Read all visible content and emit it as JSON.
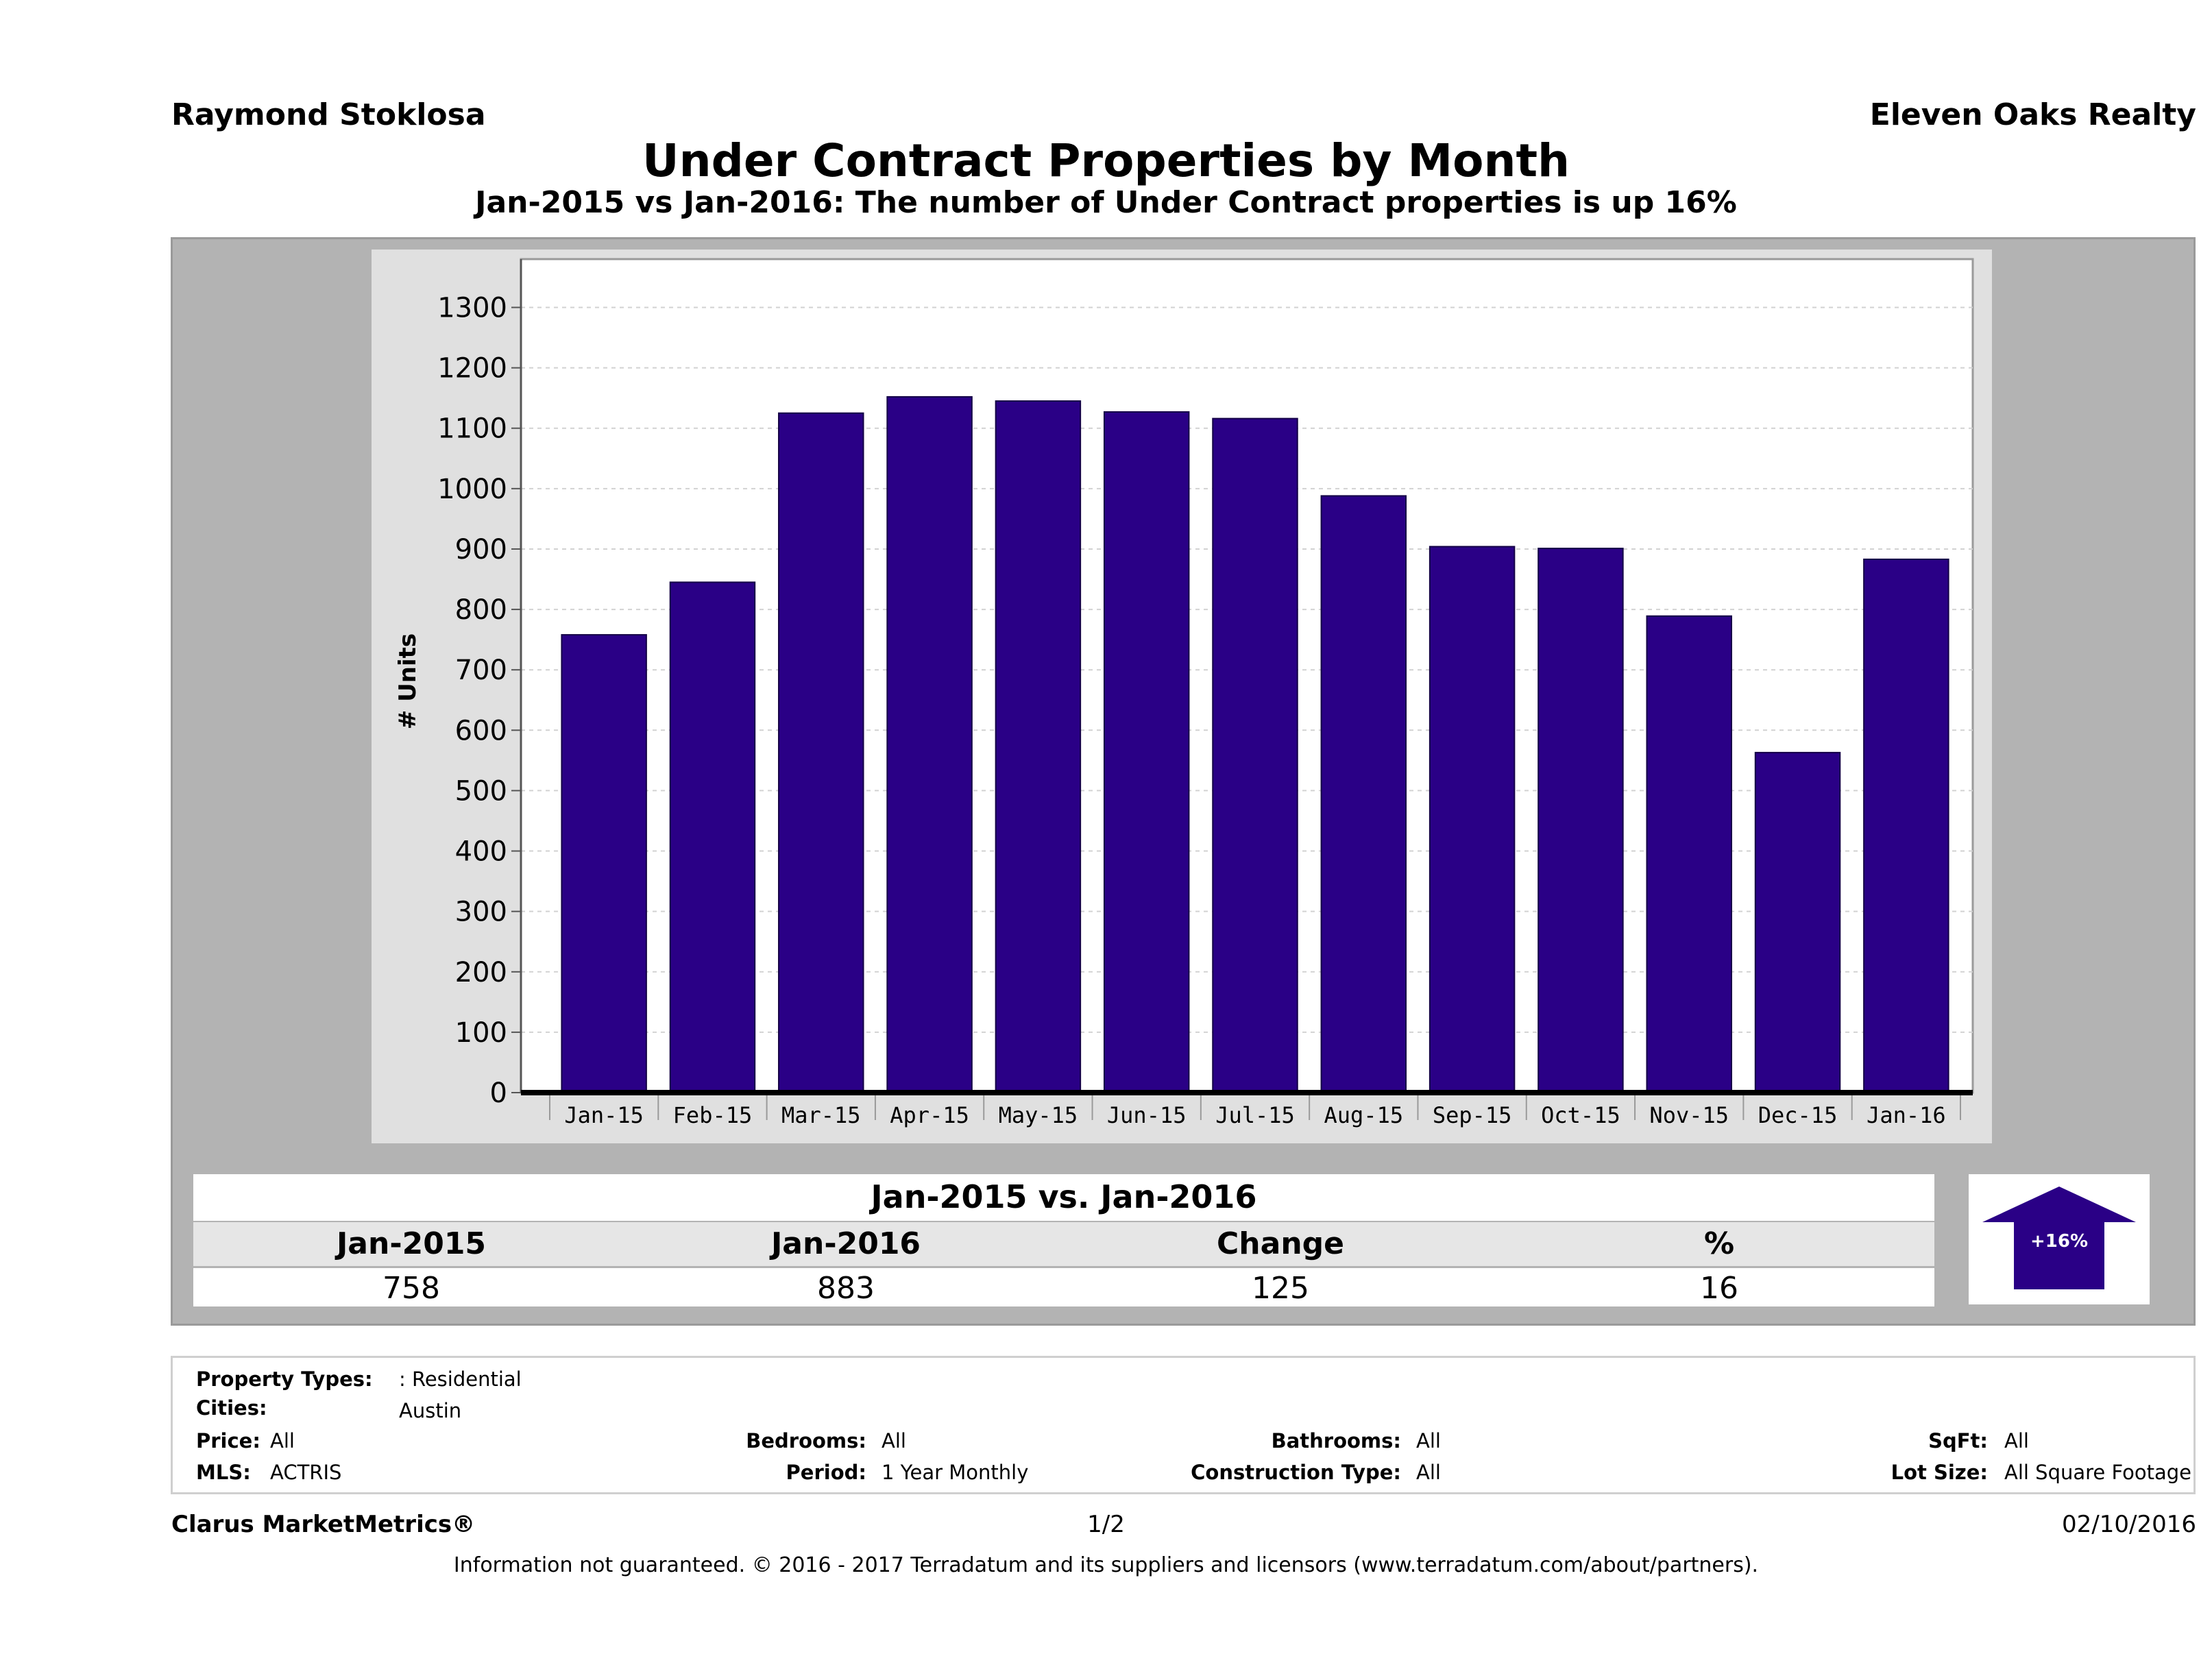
{
  "header": {
    "agent": "Raymond Stoklosa",
    "company": "Eleven Oaks Realty"
  },
  "title": "Under Contract Properties by Month",
  "subtitle": "Jan-2015 vs Jan-2016: The number of Under Contract  properties is up 16%",
  "chart_data": {
    "type": "bar",
    "categories": [
      "Jan-15",
      "Feb-15",
      "Mar-15",
      "Apr-15",
      "May-15",
      "Jun-15",
      "Jul-15",
      "Aug-15",
      "Sep-15",
      "Oct-15",
      "Nov-15",
      "Dec-15",
      "Jan-16"
    ],
    "values": [
      758,
      845,
      1125,
      1152,
      1145,
      1127,
      1116,
      988,
      904,
      901,
      789,
      563,
      883
    ],
    "ylabel": "# Units",
    "ylim": [
      0,
      1380
    ],
    "yticks": [
      0,
      100,
      200,
      300,
      400,
      500,
      600,
      700,
      800,
      900,
      1000,
      1100,
      1200,
      1300
    ],
    "bar_color": "#2a0086",
    "grid": true
  },
  "comparison": {
    "title": "Jan-2015 vs. Jan-2016",
    "headers": [
      "Jan-2015",
      "Jan-2016",
      "Change",
      "%"
    ],
    "values": [
      "758",
      "883",
      "125",
      "16"
    ],
    "badge": "+16%",
    "arrow_color": "#2a0086",
    "arrow_direction": "up"
  },
  "filters": {
    "property_types_label": "Property Types:",
    "property_types_value": ": Residential",
    "cities_label": "Cities:",
    "cities_value": "Austin",
    "price_label": "Price:",
    "price_value": "All",
    "mls_label": "MLS:",
    "mls_value": "ACTRIS",
    "bedrooms_label": "Bedrooms:",
    "bedrooms_value": "All",
    "period_label": "Period:",
    "period_value": "1 Year Monthly",
    "bathrooms_label": "Bathrooms:",
    "bathrooms_value": "All",
    "construction_label": "Construction Type:",
    "construction_value": "All",
    "sqft_label": "SqFt:",
    "sqft_value": "All",
    "lotsize_label": "Lot Size:",
    "lotsize_value": "All Square Footage"
  },
  "footer": {
    "brand": "Clarus MarketMetrics®",
    "page": "1/2",
    "date": "02/10/2016",
    "disclaimer": "Information not guaranteed. © 2016 - 2017 Terradatum and its suppliers and licensors (www.terradatum.com/about/partners)."
  }
}
